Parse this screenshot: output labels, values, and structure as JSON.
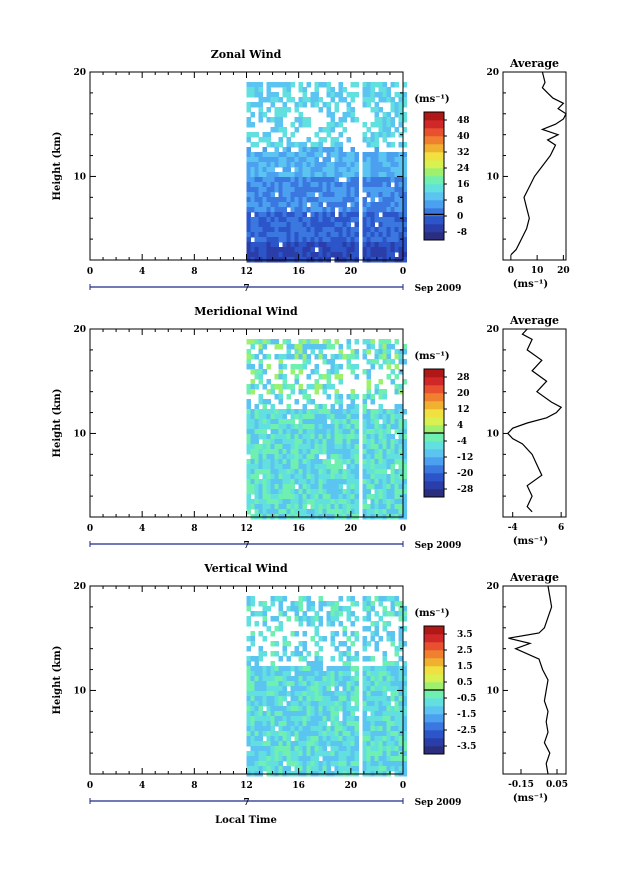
{
  "figure": {
    "xlabel": "Local Time",
    "date_label": "Sep 2009",
    "day_label": "7",
    "colorbar_unit": "(ms⁻¹)",
    "avg_unit": "(ms⁻¹)",
    "avg_title": "Average",
    "ylabel": "Height (km)"
  },
  "chart_data": [
    {
      "type": "heatmap",
      "title": "Zonal Wind",
      "ylabel": "Height (km)",
      "xlabel": "",
      "x_ticks": [
        "0",
        "4",
        "8",
        "12",
        "16",
        "20",
        "0"
      ],
      "y_ticks": [
        "10",
        "20"
      ],
      "xlim_hours": [
        0,
        24
      ],
      "ylim_km": [
        2,
        20
      ],
      "data_start_hour": 12,
      "colorbar": {
        "unit": "(ms⁻¹)",
        "ticks": [
          "48",
          "40",
          "32",
          "24",
          "16",
          "8",
          "0",
          "-8"
        ],
        "min": -12,
        "max": 52,
        "colors": [
          "#2b2e7e",
          "#2a3da8",
          "#2b55c8",
          "#3a78e0",
          "#4ca0f0",
          "#5cc4f0",
          "#62e0e0",
          "#70f0b0",
          "#a0f070",
          "#d8f050",
          "#f0e040",
          "#f0b030",
          "#f08030",
          "#e85030",
          "#d02828",
          "#b01818"
        ]
      },
      "profile": {
        "title": "Average",
        "x_ticks": [
          "0",
          "10",
          "20"
        ],
        "xlim": [
          -3,
          21
        ],
        "y_ticks": [
          "10",
          "20"
        ],
        "heights": [
          2.5,
          3,
          3.5,
          4,
          5,
          6,
          7,
          8,
          9,
          10,
          11,
          12,
          12.5,
          13,
          13.5,
          14,
          14.5,
          15,
          15.5,
          16,
          16.5,
          17,
          17.5,
          18,
          18.5,
          19,
          20
        ],
        "values": [
          0,
          2,
          3,
          4,
          6,
          7,
          6,
          5,
          7,
          9,
          12,
          15,
          16,
          17,
          14,
          18,
          12,
          17,
          20,
          21,
          18,
          20,
          16,
          14,
          12,
          13,
          12
        ]
      }
    },
    {
      "type": "heatmap",
      "title": "Meridional Wind",
      "ylabel": "Height (km)",
      "xlabel": "",
      "x_ticks": [
        "0",
        "4",
        "8",
        "12",
        "16",
        "20",
        "0"
      ],
      "y_ticks": [
        "10",
        "20"
      ],
      "xlim_hours": [
        0,
        24
      ],
      "ylim_km": [
        2,
        20
      ],
      "data_start_hour": 12,
      "colorbar": {
        "unit": "(ms⁻¹)",
        "ticks": [
          "28",
          "20",
          "12",
          "4",
          "-4",
          "-12",
          "-20",
          "-28"
        ],
        "min": -32,
        "max": 32,
        "colors": [
          "#2b2e7e",
          "#2a3da8",
          "#2b55c8",
          "#3a78e0",
          "#4ca0f0",
          "#5cc4f0",
          "#62e0e0",
          "#70f0b0",
          "#a0f070",
          "#d8f050",
          "#f0e040",
          "#f0b030",
          "#f08030",
          "#e85030",
          "#d02828",
          "#b01818"
        ]
      },
      "profile": {
        "title": "Average",
        "x_ticks": [
          "-4",
          "6"
        ],
        "xlim": [
          -6,
          7
        ],
        "y_ticks": [
          "10",
          "20"
        ],
        "heights": [
          2.5,
          3,
          4,
          5,
          6,
          7,
          8,
          9,
          9.5,
          10,
          10.5,
          11,
          11.5,
          12,
          12.5,
          13,
          14,
          15,
          16,
          17,
          18,
          19,
          19.5,
          20
        ],
        "values": [
          0,
          -1,
          0,
          -1,
          2,
          1,
          0,
          -2,
          -4,
          -5,
          -4,
          -1,
          3,
          5,
          6,
          4,
          1,
          3,
          0,
          2,
          -1,
          0,
          -2,
          -1
        ]
      }
    },
    {
      "type": "heatmap",
      "title": "Vertical Wind",
      "ylabel": "Height (km)",
      "xlabel": "Local Time",
      "x_ticks": [
        "0",
        "4",
        "8",
        "12",
        "16",
        "20",
        "0"
      ],
      "y_ticks": [
        "10",
        "20"
      ],
      "xlim_hours": [
        0,
        24
      ],
      "ylim_km": [
        2,
        20
      ],
      "data_start_hour": 12,
      "colorbar": {
        "unit": "(ms⁻¹)",
        "ticks": [
          "3.5",
          "2.5",
          "1.5",
          "0.5",
          "-0.5",
          "-1.5",
          "-2.5",
          "-3.5"
        ],
        "min": -4,
        "max": 4,
        "colors": [
          "#2b2e7e",
          "#2a3da8",
          "#2b55c8",
          "#3a78e0",
          "#4ca0f0",
          "#5cc4f0",
          "#62e0e0",
          "#70f0b0",
          "#a0f070",
          "#d8f050",
          "#f0e040",
          "#f0b030",
          "#f08030",
          "#e85030",
          "#d02828",
          "#b01818"
        ]
      },
      "profile": {
        "title": "Average",
        "x_ticks": [
          "-0.15",
          "0.05"
        ],
        "xlim": [
          -0.25,
          0.1
        ],
        "y_ticks": [
          "10",
          "20"
        ],
        "heights": [
          2,
          3,
          4,
          5,
          6,
          7,
          8,
          9,
          10,
          11,
          12,
          13,
          14,
          14.5,
          15,
          15.5,
          16,
          17,
          18,
          19,
          20
        ],
        "values": [
          0,
          -0.01,
          0.01,
          -0.02,
          0,
          -0.01,
          0,
          -0.02,
          -0.01,
          0,
          -0.03,
          -0.05,
          -0.18,
          -0.1,
          -0.22,
          -0.05,
          -0.02,
          0,
          0.02,
          0.01,
          0
        ]
      }
    }
  ]
}
